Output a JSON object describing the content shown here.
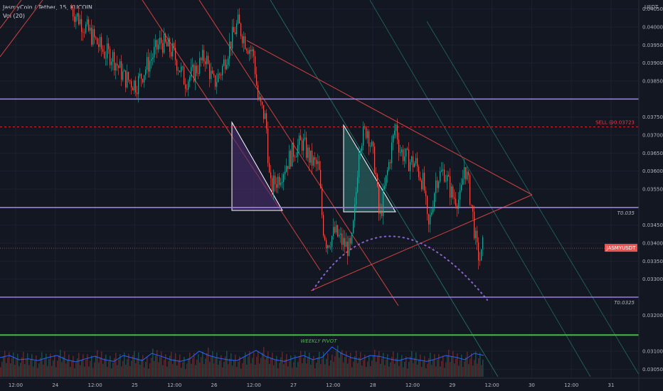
{
  "header": {
    "symbol_line": "JasmyCoin / Tether, 15, KUCOIN",
    "volume_label": "Vol (20)"
  },
  "chart_data": {
    "type": "candlestick",
    "currency": "USDT",
    "ylim": [
      0.03025,
      0.04075
    ],
    "y_ticks": [
      "0.04050",
      "0.04000",
      "0.03950",
      "0.03900",
      "0.03850",
      "0.03750",
      "0.03700",
      "0.03650",
      "0.03600",
      "0.03550",
      "0.03450",
      "0.03400",
      "0.03350",
      "0.03300",
      "0.03200",
      "0.03100",
      "0.03050"
    ],
    "x_ticks": [
      "12:00",
      "24",
      "12:00",
      "25",
      "12:00",
      "26",
      "12:00",
      "27",
      "12:00",
      "28",
      "12:00",
      "29",
      "12:00",
      "30",
      "12:00",
      "31"
    ],
    "horizontal_levels": [
      {
        "price": 0.038,
        "label": "0.03800",
        "color": "#9c7de6",
        "note": ""
      },
      {
        "price": 0.03723,
        "label": "0.03723",
        "color": "#f23645",
        "note": "SELL @0.03723"
      },
      {
        "price": 0.03499,
        "label": "0.03499",
        "color": "#9c7de6",
        "note": "T0.035"
      },
      {
        "price": 0.0325,
        "label": "0.03250",
        "color": "#9c7de6",
        "note": "T0.0325"
      },
      {
        "price": 0.03145,
        "label": "0.03145",
        "color": "#3fbf3f",
        "note": "WEEKLY PIVOT"
      }
    ],
    "last_price": {
      "label": "0.03386",
      "symbol": "JASMYUSDT",
      "countdown": "08:39",
      "price": 0.03386
    },
    "price_path": [
      [
        0.0,
        0.0405
      ],
      [
        0.4,
        0.0399
      ],
      [
        0.8,
        0.0393
      ],
      [
        1.0,
        0.0392
      ],
      [
        1.3,
        0.0386
      ],
      [
        1.6,
        0.0384
      ],
      [
        1.9,
        0.039
      ],
      [
        2.2,
        0.0396
      ],
      [
        2.5,
        0.0393
      ],
      [
        2.8,
        0.0385
      ],
      [
        3.0,
        0.0387
      ],
      [
        3.3,
        0.0392
      ],
      [
        3.5,
        0.0384
      ],
      [
        3.7,
        0.0388
      ],
      [
        3.9,
        0.0395
      ],
      [
        4.1,
        0.0401
      ],
      [
        4.3,
        0.0396
      ],
      [
        4.5,
        0.0392
      ],
      [
        4.6,
        0.038
      ],
      [
        4.8,
        0.0374
      ],
      [
        4.9,
        0.0355
      ],
      [
        5.1,
        0.0358
      ],
      [
        5.3,
        0.0362
      ],
      [
        5.5,
        0.0366
      ],
      [
        5.7,
        0.0368
      ],
      [
        5.9,
        0.0363
      ],
      [
        6.1,
        0.0361
      ],
      [
        6.2,
        0.0345
      ],
      [
        6.3,
        0.034
      ],
      [
        6.5,
        0.0343
      ],
      [
        6.7,
        0.034
      ],
      [
        6.9,
        0.0338
      ],
      [
        7.0,
        0.035
      ],
      [
        7.1,
        0.0368
      ],
      [
        7.3,
        0.0372
      ],
      [
        7.5,
        0.0361
      ],
      [
        7.6,
        0.0346
      ],
      [
        7.8,
        0.036
      ],
      [
        8.0,
        0.0373
      ],
      [
        8.1,
        0.0366
      ],
      [
        8.3,
        0.0363
      ],
      [
        8.5,
        0.0362
      ],
      [
        8.7,
        0.0356
      ],
      [
        8.8,
        0.0343
      ],
      [
        9.0,
        0.0358
      ],
      [
        9.2,
        0.036
      ],
      [
        9.4,
        0.0353
      ],
      [
        9.6,
        0.0352
      ],
      [
        9.7,
        0.0362
      ],
      [
        9.8,
        0.0356
      ],
      [
        9.9,
        0.0348
      ],
      [
        10.0,
        0.0338
      ],
      [
        10.1,
        0.0335
      ],
      [
        10.15,
        0.0339
      ]
    ],
    "volume_profile": [
      0.45,
      0.5,
      0.4,
      0.42,
      0.38,
      0.45,
      0.5,
      0.4,
      0.35,
      0.42,
      0.48,
      0.4,
      0.36,
      0.5,
      0.44,
      0.38,
      0.55,
      0.48,
      0.4,
      0.36,
      0.42,
      0.6,
      0.5,
      0.44,
      0.4,
      0.38,
      0.5,
      0.62,
      0.48,
      0.4,
      0.36,
      0.44,
      0.5,
      0.4,
      0.46,
      0.7,
      0.55,
      0.45,
      0.4,
      0.5,
      0.48,
      0.42,
      0.38,
      0.44,
      0.4,
      0.36,
      0.42,
      0.5,
      0.46,
      0.4,
      0.55,
      0.5
    ],
    "colors": {
      "up": "#26a69a",
      "down": "#ef5350",
      "volume_line": "#2962ff"
    }
  }
}
